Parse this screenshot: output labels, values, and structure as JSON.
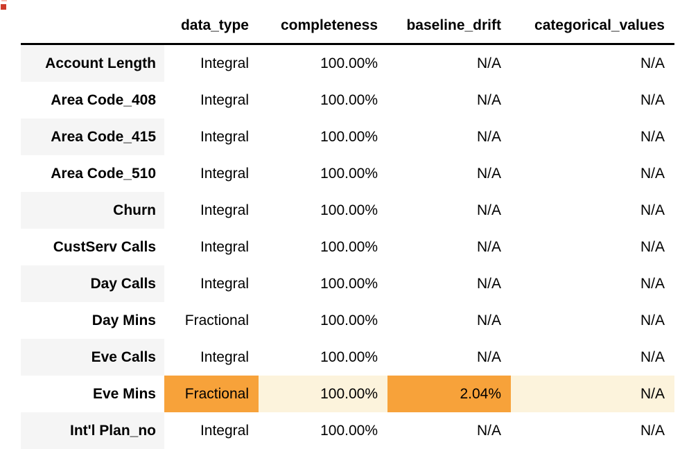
{
  "window": {
    "background": "#ffffff"
  },
  "decorations": {
    "red_square_color": "#ce3b2b",
    "pink_strip_color": "#f6bcb2"
  },
  "table": {
    "corner_label": "",
    "columns": [
      "data_type",
      "completeness",
      "baseline_drift",
      "categorical_values"
    ],
    "rows": [
      {
        "label": "Account Length",
        "values": [
          "Integral",
          "100.00%",
          "N/A",
          "N/A"
        ],
        "striped": true
      },
      {
        "label": "Area Code_408",
        "values": [
          "Integral",
          "100.00%",
          "N/A",
          "N/A"
        ],
        "striped": false
      },
      {
        "label": "Area Code_415",
        "values": [
          "Integral",
          "100.00%",
          "N/A",
          "N/A"
        ],
        "striped": true
      },
      {
        "label": "Area Code_510",
        "values": [
          "Integral",
          "100.00%",
          "N/A",
          "N/A"
        ],
        "striped": false
      },
      {
        "label": "Churn",
        "values": [
          "Integral",
          "100.00%",
          "N/A",
          "N/A"
        ],
        "striped": true
      },
      {
        "label": "CustServ Calls",
        "values": [
          "Integral",
          "100.00%",
          "N/A",
          "N/A"
        ],
        "striped": false
      },
      {
        "label": "Day Calls",
        "values": [
          "Integral",
          "100.00%",
          "N/A",
          "N/A"
        ],
        "striped": true
      },
      {
        "label": "Day Mins",
        "values": [
          "Fractional",
          "100.00%",
          "N/A",
          "N/A"
        ],
        "striped": false
      },
      {
        "label": "Eve Calls",
        "values": [
          "Integral",
          "100.00%",
          "N/A",
          "N/A"
        ],
        "striped": true
      },
      {
        "label": "Eve Mins",
        "values": [
          "Fractional",
          "100.00%",
          "2.04%",
          "N/A"
        ],
        "striped": false,
        "cell_highlights": [
          "strong",
          "soft",
          "strong",
          "soft"
        ]
      },
      {
        "label": "Int'l Plan_no",
        "values": [
          "Integral",
          "100.00%",
          "N/A",
          "N/A"
        ],
        "striped": true
      }
    ],
    "colors": {
      "stripe": "#f5f5f5",
      "highlight_strong": "#f7a23a",
      "highlight_soft": "#fcf3dc",
      "header_border": "#000000",
      "text": "#000000"
    }
  }
}
